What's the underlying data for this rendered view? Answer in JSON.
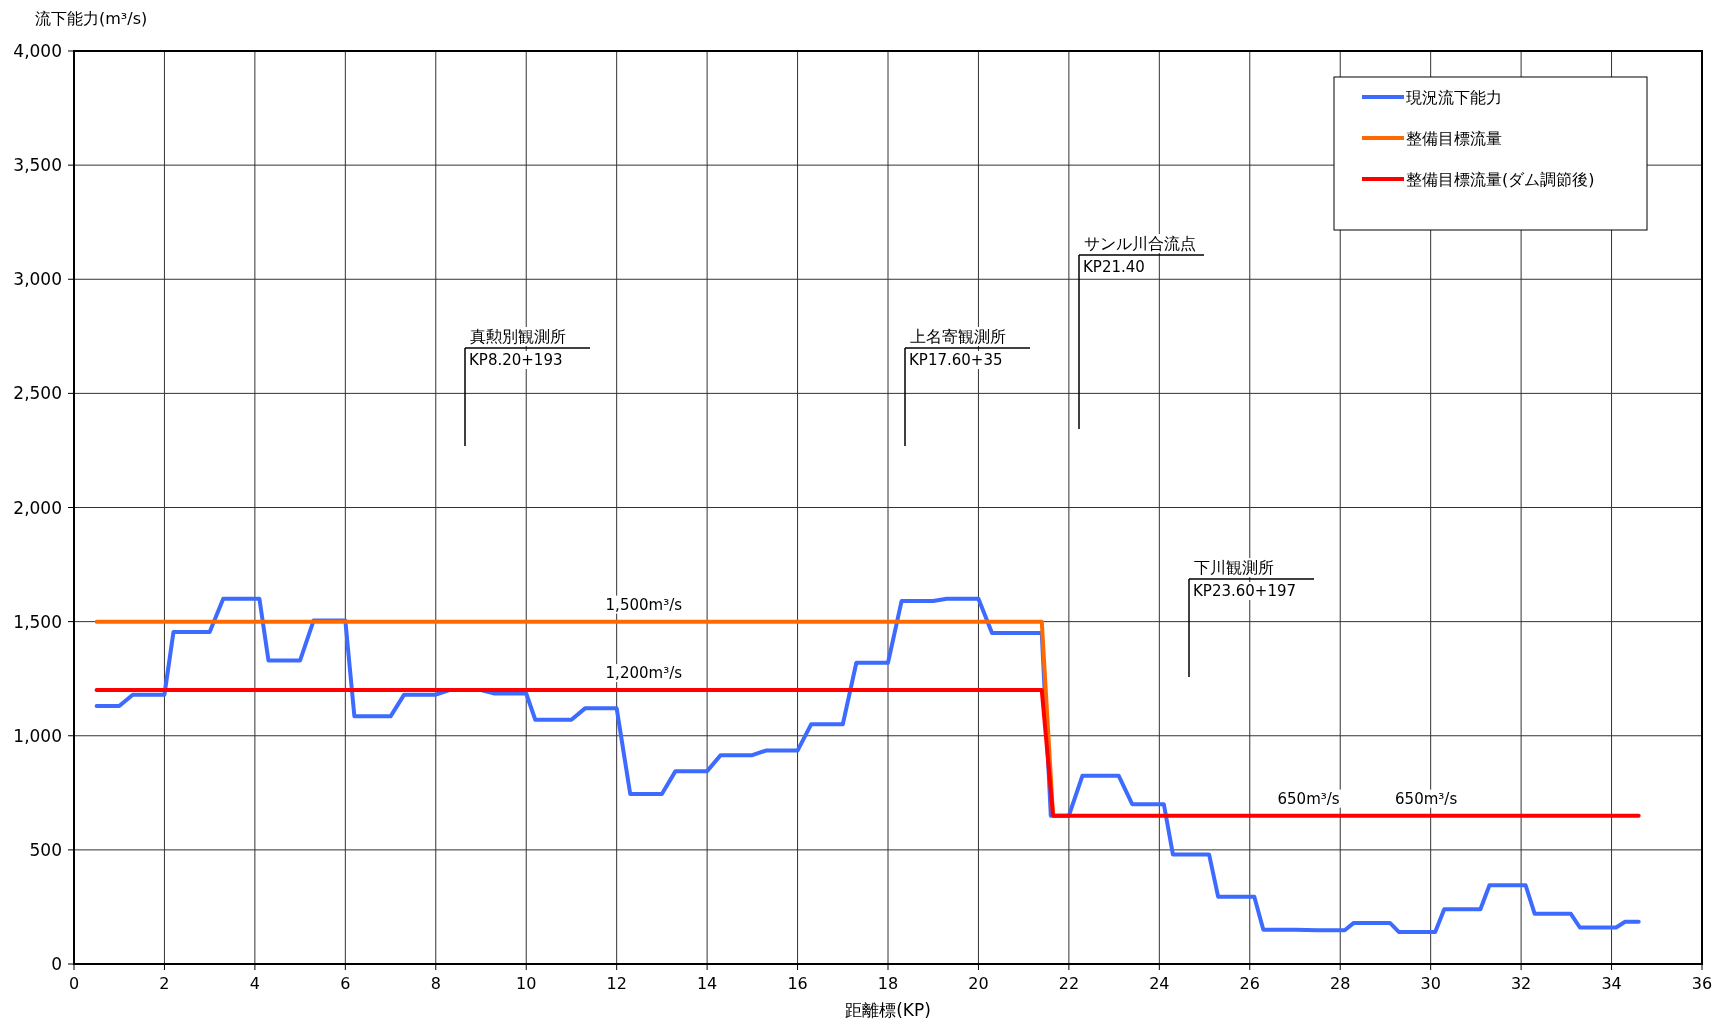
{
  "chart_data": {
    "type": "line",
    "xlabel": "距離標(KP)",
    "ylabel": "流下能力(m³/s)",
    "xlim": [
      0,
      36
    ],
    "ylim": [
      0,
      4000
    ],
    "xticks": [
      0,
      2,
      4,
      6,
      8,
      10,
      12,
      14,
      16,
      18,
      20,
      22,
      24,
      26,
      28,
      30,
      32,
      34,
      36
    ],
    "yticks": [
      0,
      500,
      {
        "value": 1000,
        "label": "1,000"
      },
      {
        "value": 1500,
        "label": "1,500"
      },
      {
        "value": 2000,
        "label": "2,000"
      },
      {
        "value": 2500,
        "label": "2,500"
      },
      {
        "value": 3000,
        "label": "3,000"
      },
      {
        "value": 3500,
        "label": "3,500"
      },
      {
        "value": 4000,
        "label": "4,000"
      }
    ],
    "grid": true,
    "legend": "top right",
    "line_style": "solid",
    "marker": "none",
    "series": [
      {
        "name": "現況流下能力",
        "color": "#3d6bff",
        "x": [
          0.5,
          1.0,
          1.3,
          2.0,
          2.2,
          3.0,
          3.3,
          4.1,
          4.3,
          5.0,
          5.3,
          6.0,
          6.2,
          7.0,
          7.3,
          8.0,
          8.3,
          9.0,
          9.3,
          10.0,
          10.2,
          11.0,
          11.3,
          12.0,
          12.3,
          13.0,
          13.3,
          14.0,
          14.3,
          15.0,
          15.3,
          16.0,
          16.3,
          17.0,
          17.3,
          18.0,
          18.3,
          19.0,
          19.3,
          20.0,
          20.3,
          21.4,
          21.6,
          22.0,
          22.3,
          23.1,
          23.4,
          24.1,
          24.3,
          25.1,
          25.3,
          26.1,
          26.3,
          27.0,
          27.5,
          28.1,
          28.3,
          29.1,
          29.3,
          30.1,
          30.3,
          31.1,
          31.3,
          32.1,
          32.3,
          33.1,
          33.3,
          34.1,
          34.3,
          34.6
        ],
        "values": [
          1130,
          1130,
          1180,
          1180,
          1455,
          1455,
          1600,
          1600,
          1330,
          1330,
          1505,
          1505,
          1085,
          1085,
          1180,
          1180,
          1200,
          1200,
          1185,
          1185,
          1070,
          1070,
          1120,
          1120,
          745,
          745,
          845,
          845,
          915,
          915,
          935,
          935,
          1050,
          1050,
          1320,
          1320,
          1590,
          1590,
          1600,
          1600,
          1450,
          1450,
          650,
          650,
          825,
          825,
          700,
          700,
          480,
          480,
          295,
          295,
          150,
          150,
          148,
          148,
          180,
          180,
          140,
          140,
          240,
          240,
          345,
          345,
          220,
          220,
          160,
          160,
          185,
          185
        ]
      },
      {
        "name": "整備目標流量",
        "color": "#ff6a00",
        "x": [
          0.5,
          21.4,
          21.65
        ],
        "values": [
          1500,
          1500,
          650
        ]
      },
      {
        "name": "整備目標流量(ダム調節後)",
        "color": "#ff0000",
        "x": [
          0.5,
          21.4,
          21.65,
          34.6
        ],
        "values": [
          1200,
          1200,
          650,
          650
        ]
      }
    ],
    "annotations": [
      "真勲別観測所\nKP8.20+193",
      "上名寄観測所\nKP17.60+35",
      "サンル川合流点\nKP21.40",
      "下川観測所\nKP23.60+197",
      {
        "text": "1,500m³/s",
        "x": 12.6,
        "y": 1500
      },
      {
        "text": "1,200m³/s",
        "x": 12.6,
        "y": 1200
      },
      {
        "text": "650m³/s",
        "x": 27.3,
        "y": 650
      },
      {
        "text": "650m³/s",
        "x": 29.9,
        "y": 650
      }
    ]
  }
}
